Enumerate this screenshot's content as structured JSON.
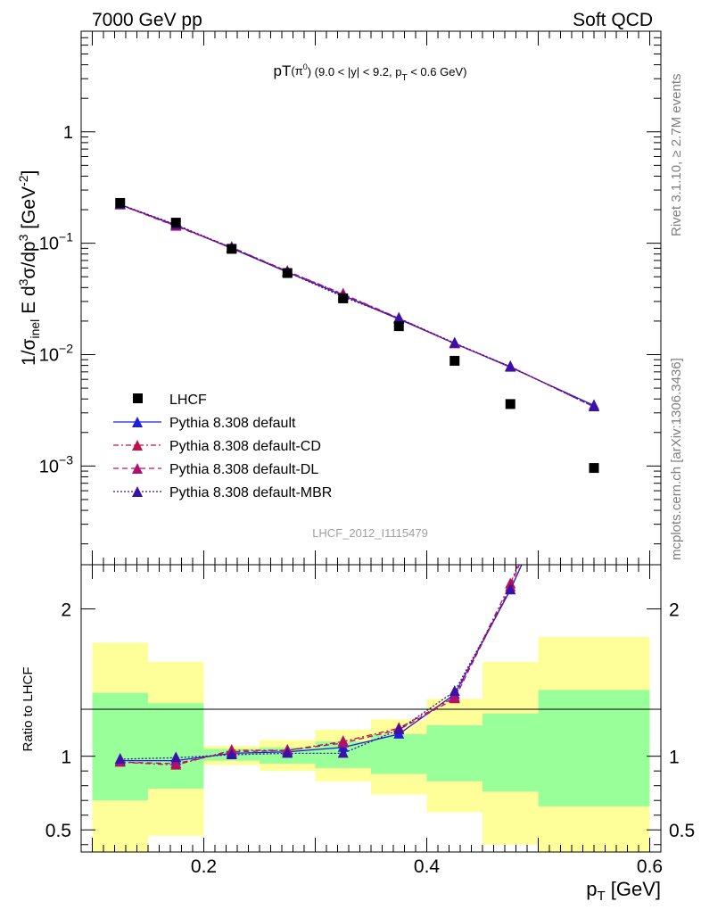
{
  "header": {
    "left": "7000 GeV pp",
    "right": "Soft QCD"
  },
  "side": {
    "rivet": "Rivet 3.1.10, ≥ 2.7M events",
    "source": "mcplots.cern.ch [arXiv:1306.3436]"
  },
  "watermark": "LHCF_2012_I1115479",
  "chart_data": [
    {
      "type": "scatter",
      "title": "pT(π⁰) (9.0 < |y| < 9.2, pT < 0.6 GeV)",
      "ylabel": "1/σ_inel E d³σ/dp³ [GeV⁻²]",
      "yscale": "log",
      "xlim": [
        0.09,
        0.61
      ],
      "ylim": [
        0.00013,
        8
      ],
      "y_tick_labels": [
        "10⁻³",
        "10⁻²",
        "10⁻¹",
        "1"
      ],
      "legend_position": "lower-left",
      "x": [
        0.125,
        0.175,
        0.225,
        0.275,
        0.325,
        0.375,
        0.425,
        0.475,
        0.55
      ],
      "series": [
        {
          "name": "LHCF",
          "color": "#000000",
          "marker": "square",
          "values": [
            0.23,
            0.153,
            0.089,
            0.054,
            0.032,
            0.018,
            0.0088,
            0.0036,
            0.00096
          ]
        },
        {
          "name": "Pythia 8.308 default",
          "color": "#1f1fdc",
          "dash": "solid",
          "marker": "triangle",
          "values": [
            0.222,
            0.145,
            0.09,
            0.055,
            0.034,
            0.0208,
            0.0126,
            0.0077,
            0.0035
          ]
        },
        {
          "name": "Pythia 8.308 default-CD",
          "color": "#c0104a",
          "dash": "dashdot",
          "marker": "triangle",
          "values": [
            0.221,
            0.143,
            0.092,
            0.056,
            0.035,
            0.0212,
            0.0126,
            0.0078,
            0.0034
          ]
        },
        {
          "name": "Pythia 8.308 default-DL",
          "color": "#b0106e",
          "dash": "dashed",
          "marker": "triangle",
          "values": [
            0.221,
            0.142,
            0.091,
            0.056,
            0.0346,
            0.0211,
            0.0125,
            0.0078,
            0.0034
          ]
        },
        {
          "name": "Pythia 8.308 default-MBR",
          "color": "#3a10a8",
          "dash": "dotted",
          "marker": "triangle",
          "values": [
            0.223,
            0.147,
            0.091,
            0.055,
            0.033,
            0.0212,
            0.0127,
            0.0078,
            0.0034
          ]
        }
      ]
    },
    {
      "type": "line",
      "xlabel": "p_T [GeV]",
      "ylabel": "Ratio to LHCF",
      "xlim": [
        0.09,
        0.61
      ],
      "ylim": [
        0.35,
        2.3
      ],
      "x_ticks": [
        0.2,
        0.4,
        0.6
      ],
      "x_tick_labels": [
        "0.2",
        "0.4",
        "0.6"
      ],
      "y_ticks": [
        0.5,
        1,
        2
      ],
      "y_tick_labels": [
        "0.5",
        "1",
        "2"
      ],
      "bands": [
        {
          "x0": 0.1,
          "x1": 0.15,
          "inner": [
            0.7,
            1.43
          ],
          "outer": [
            0.35,
            1.77
          ]
        },
        {
          "x0": 0.15,
          "x1": 0.2,
          "inner": [
            0.78,
            1.36
          ],
          "outer": [
            0.46,
            1.64
          ]
        },
        {
          "x0": 0.2,
          "x1": 0.25,
          "inner": [
            0.97,
            1.05
          ],
          "outer": [
            0.94,
            1.07
          ]
        },
        {
          "x0": 0.25,
          "x1": 0.3,
          "inner": [
            0.95,
            1.06
          ],
          "outer": [
            0.9,
            1.11
          ]
        },
        {
          "x0": 0.3,
          "x1": 0.35,
          "inner": [
            0.92,
            1.1
          ],
          "outer": [
            0.83,
            1.18
          ]
        },
        {
          "x0": 0.35,
          "x1": 0.4,
          "inner": [
            0.88,
            1.15
          ],
          "outer": [
            0.74,
            1.25
          ]
        },
        {
          "x0": 0.4,
          "x1": 0.45,
          "inner": [
            0.83,
            1.21
          ],
          "outer": [
            0.62,
            1.39
          ]
        },
        {
          "x0": 0.45,
          "x1": 0.5,
          "inner": [
            0.76,
            1.29
          ],
          "outer": [
            0.4,
            1.64
          ]
        },
        {
          "x0": 0.5,
          "x1": 0.6,
          "inner": [
            0.66,
            1.45
          ],
          "outer": [
            0.35,
            1.81
          ]
        }
      ],
      "band_colors": {
        "inner": "#99ff99",
        "outer": "#ffff99"
      },
      "x": [
        0.125,
        0.175,
        0.225,
        0.275,
        0.325,
        0.375,
        0.425,
        0.475,
        0.5
      ],
      "series": [
        {
          "name": "Pythia 8.308 default",
          "color": "#1f1fdc",
          "dash": "solid",
          "values": [
            0.97,
            0.97,
            1.02,
            1.03,
            1.06,
            1.15,
            1.42,
            2.13,
            2.55
          ]
        },
        {
          "name": "Pythia 8.308 default-CD",
          "color": "#c0104a",
          "dash": "dashdot",
          "values": [
            0.96,
            0.94,
            1.04,
            1.04,
            1.1,
            1.19,
            1.4,
            2.17,
            2.65
          ]
        },
        {
          "name": "Pythia 8.308 default-DL",
          "color": "#b0106e",
          "dash": "dashed",
          "values": [
            0.96,
            0.95,
            1.03,
            1.04,
            1.09,
            1.18,
            1.39,
            2.15,
            2.62
          ]
        },
        {
          "name": "Pythia 8.308 default-MBR",
          "color": "#3a10a8",
          "dash": "dotted",
          "values": [
            0.98,
            0.99,
            1.01,
            1.02,
            1.02,
            1.18,
            1.44,
            2.13,
            2.55
          ]
        }
      ],
      "marker_x": [
        0.125,
        0.175,
        0.225,
        0.275,
        0.325,
        0.375,
        0.425,
        0.475
      ]
    }
  ]
}
